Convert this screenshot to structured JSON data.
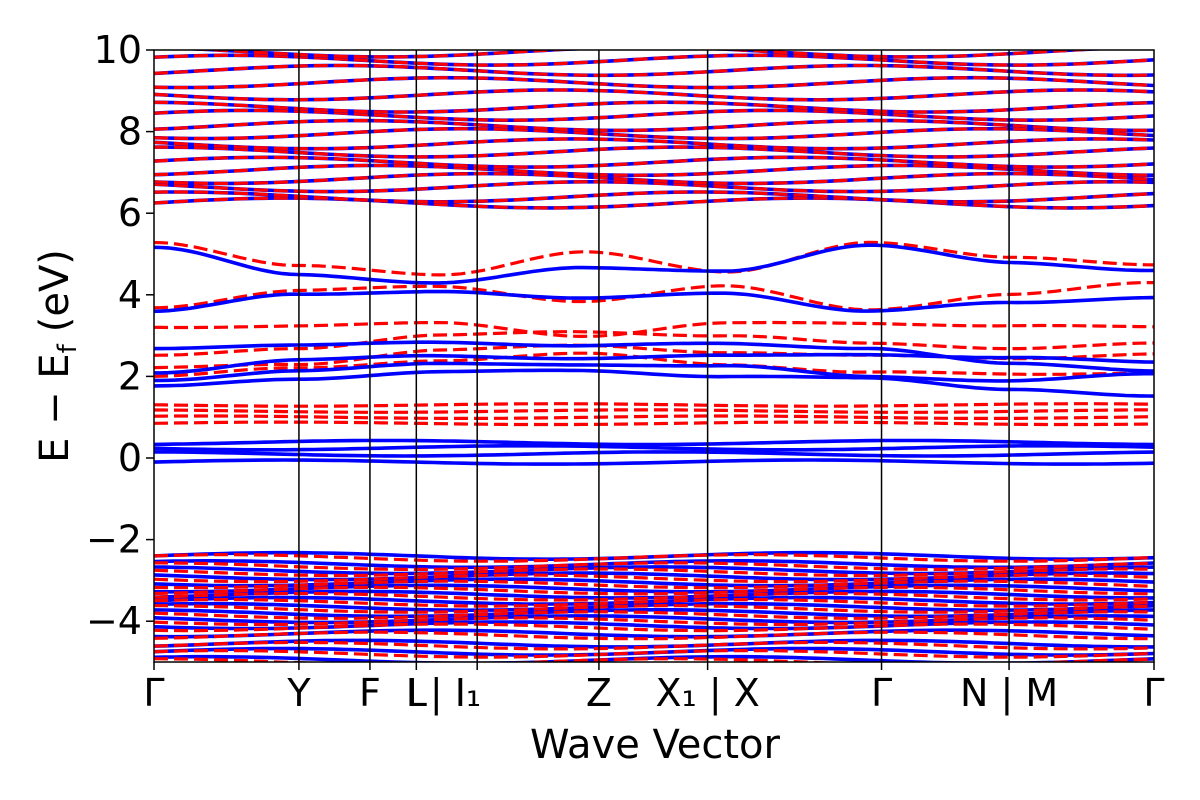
{
  "chart_data": {
    "type": "line",
    "title": "",
    "xlabel": "Wave Vector",
    "ylabel_main": "E − E",
    "ylabel_sub": "f",
    "ylabel_unit": "(eV)",
    "ylim": [
      -5,
      10
    ],
    "yticks": [
      {
        "value": -4,
        "label": "−4"
      },
      {
        "value": -2,
        "label": "−2"
      },
      {
        "value": 0,
        "label": "0"
      },
      {
        "value": 2,
        "label": "2"
      },
      {
        "value": 4,
        "label": "4"
      },
      {
        "value": 6,
        "label": "6"
      },
      {
        "value": 8,
        "label": "8"
      },
      {
        "value": 10,
        "label": "10"
      }
    ],
    "kpath": [
      {
        "x": 0.0,
        "label": "Γ"
      },
      {
        "x": 1.0,
        "label": "Y"
      },
      {
        "x": 1.49,
        "label": "F"
      },
      {
        "x": 1.81,
        "label": "L | I | I₁"
      },
      {
        "x": 2.23,
        "label": ""
      },
      {
        "x": 3.07,
        "label": "Z"
      },
      {
        "x": 3.82,
        "label": "X₁ | X"
      },
      {
        "x": 5.02,
        "label": "Γ"
      },
      {
        "x": 5.9,
        "label": "N | M"
      },
      {
        "x": 6.9,
        "label": "Γ"
      }
    ],
    "tick_labels": [
      {
        "x": 0.0,
        "label": "Γ"
      },
      {
        "x": 1.0,
        "label": "Y"
      },
      {
        "x": 1.49,
        "label": "F"
      },
      {
        "x": 1.81,
        "label": "L"
      },
      {
        "x": 2.0,
        "label": "I | I₁"
      },
      {
        "x": 3.07,
        "label": "Z"
      },
      {
        "x": 3.82,
        "label": "X₁ | X"
      },
      {
        "x": 5.02,
        "label": "Γ"
      },
      {
        "x": 5.9,
        "label": "N | M"
      },
      {
        "x": 6.9,
        "label": "Γ"
      }
    ],
    "series": [
      {
        "name": "solid",
        "color": "#0000ff",
        "style": "solid"
      },
      {
        "name": "dashed",
        "color": "#ff0000",
        "style": "dashed"
      }
    ],
    "bands": {
      "solid_flat": [
        -0.1,
        0.1,
        0.25,
        0.38
      ],
      "solid_conduction": [
        [
          1.75,
          1.95,
          2.1,
          2.15,
          2.0,
          1.95,
          1.7,
          1.5
        ],
        [
          1.9,
          2.15,
          2.3,
          2.3,
          2.25,
          2.0,
          1.9,
          2.05
        ],
        [
          2.1,
          2.4,
          2.5,
          2.45,
          2.5,
          2.55,
          2.45,
          2.35
        ],
        [
          2.7,
          2.75,
          2.85,
          2.75,
          2.8,
          2.7,
          2.3,
          2.15
        ],
        [
          3.6,
          4.0,
          4.1,
          3.9,
          4.05,
          3.6,
          3.8,
          3.95
        ],
        [
          5.15,
          4.5,
          4.3,
          4.65,
          4.6,
          5.2,
          4.8,
          4.6
        ]
      ],
      "dashed_flat": [
        0.85,
        1.0,
        1.15,
        1.3
      ],
      "dashed_conduction": [
        [
          2.0,
          2.2,
          2.4,
          2.55,
          2.3,
          2.1,
          2.05,
          2.1
        ],
        [
          2.2,
          2.3,
          2.65,
          2.75,
          2.6,
          2.5,
          2.45,
          2.55
        ],
        [
          2.5,
          2.7,
          3.0,
          3.1,
          3.0,
          2.8,
          2.7,
          2.8
        ],
        [
          3.2,
          3.25,
          3.3,
          3.0,
          3.3,
          3.3,
          3.25,
          3.2
        ],
        [
          3.7,
          4.1,
          4.2,
          3.85,
          4.2,
          3.65,
          4.0,
          4.3
        ],
        [
          5.3,
          4.7,
          4.5,
          5.05,
          4.55,
          5.3,
          4.9,
          4.75
        ]
      ],
      "valence_levels": [
        -2.4,
        -2.6,
        -2.75,
        -2.9,
        -3.05,
        -3.2,
        -3.35,
        -3.5,
        -3.65,
        -3.8,
        -3.95,
        -4.1,
        -4.3,
        -4.55,
        -4.75,
        -4.95
      ],
      "upper_levels": [
        6.25,
        6.4,
        6.65,
        6.85,
        7.05,
        7.25,
        7.5,
        7.7,
        7.95,
        8.15,
        8.4,
        8.6,
        8.9,
        9.2,
        9.5,
        9.75,
        9.95
      ]
    }
  }
}
